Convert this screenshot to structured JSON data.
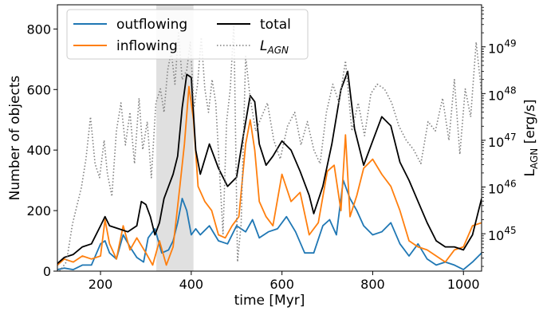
{
  "chart_data": {
    "type": "line",
    "title": "",
    "xlabel": "time [Myr]",
    "ylabel": "Number of objects",
    "y2label": "L_AGN [erg/s]",
    "xlim": [
      105,
      1040
    ],
    "ylim": [
      0,
      880
    ],
    "y2lim_log10": [
      44.2,
      49.9
    ],
    "y2scale": "log",
    "grid": false,
    "legend_position": "top-left",
    "shaded_region_x": [
      323,
      405
    ],
    "x_ticks": [
      200,
      400,
      600,
      800,
      1000
    ],
    "y_ticks": [
      0,
      200,
      400,
      600,
      800
    ],
    "y2_ticks": [
      {
        "value": 45,
        "base": "10",
        "exp": "45"
      },
      {
        "value": 46,
        "base": "10",
        "exp": "46"
      },
      {
        "value": 47,
        "base": "10",
        "exp": "47"
      },
      {
        "value": 48,
        "base": "10",
        "exp": "48"
      },
      {
        "value": 49,
        "base": "10",
        "exp": "49"
      }
    ],
    "series": [
      {
        "name": "outflowing",
        "color": "#1f77b4",
        "axis": "left",
        "x": [
          105,
          120,
          140,
          160,
          180,
          200,
          210,
          220,
          235,
          250,
          265,
          280,
          295,
          305,
          320,
          335,
          350,
          360,
          370,
          380,
          390,
          400,
          410,
          420,
          440,
          460,
          480,
          500,
          520,
          535,
          550,
          570,
          590,
          610,
          630,
          650,
          670,
          690,
          705,
          720,
          735,
          750,
          765,
          780,
          800,
          820,
          840,
          860,
          880,
          900,
          920,
          940,
          960,
          980,
          1000,
          1020,
          1040
        ],
        "y": [
          5,
          10,
          5,
          20,
          20,
          90,
          100,
          60,
          40,
          120,
          80,
          45,
          30,
          110,
          140,
          60,
          70,
          100,
          160,
          240,
          200,
          120,
          140,
          120,
          150,
          100,
          90,
          150,
          130,
          170,
          110,
          130,
          140,
          180,
          130,
          60,
          60,
          150,
          170,
          120,
          300,
          240,
          200,
          150,
          120,
          130,
          160,
          90,
          50,
          90,
          40,
          20,
          30,
          20,
          5,
          30,
          60
        ]
      },
      {
        "name": "inflowing",
        "color": "#ff7f0e",
        "axis": "left",
        "x": [
          105,
          120,
          140,
          160,
          180,
          200,
          210,
          220,
          235,
          250,
          265,
          280,
          300,
          315,
          330,
          345,
          360,
          375,
          385,
          395,
          405,
          415,
          430,
          445,
          460,
          475,
          490,
          505,
          520,
          530,
          540,
          550,
          565,
          580,
          600,
          620,
          640,
          660,
          680,
          700,
          715,
          730,
          740,
          750,
          765,
          780,
          800,
          820,
          840,
          860,
          880,
          900,
          920,
          940,
          960,
          980,
          1000,
          1020,
          1040
        ],
        "y": [
          20,
          40,
          30,
          50,
          40,
          50,
          170,
          90,
          40,
          150,
          70,
          110,
          60,
          20,
          100,
          20,
          80,
          280,
          420,
          610,
          500,
          280,
          230,
          200,
          120,
          110,
          150,
          180,
          420,
          500,
          400,
          230,
          180,
          150,
          320,
          230,
          260,
          120,
          160,
          330,
          350,
          200,
          450,
          180,
          250,
          340,
          370,
          320,
          280,
          200,
          100,
          80,
          70,
          50,
          30,
          70,
          80,
          150,
          160
        ]
      },
      {
        "name": "total",
        "color": "#000000",
        "axis": "left",
        "x": [
          105,
          120,
          140,
          160,
          180,
          200,
          210,
          220,
          240,
          260,
          280,
          290,
          300,
          310,
          320,
          330,
          340,
          350,
          360,
          370,
          380,
          390,
          400,
          410,
          420,
          440,
          460,
          480,
          500,
          515,
          530,
          540,
          550,
          565,
          580,
          600,
          620,
          640,
          660,
          670,
          690,
          710,
          730,
          745,
          760,
          780,
          800,
          820,
          840,
          860,
          880,
          900,
          920,
          940,
          960,
          980,
          1000,
          1020,
          1030,
          1040
        ],
        "y": [
          25,
          45,
          55,
          80,
          90,
          150,
          180,
          150,
          140,
          130,
          150,
          230,
          220,
          180,
          120,
          160,
          240,
          280,
          320,
          380,
          540,
          650,
          640,
          400,
          320,
          420,
          340,
          280,
          310,
          450,
          580,
          560,
          420,
          350,
          380,
          430,
          400,
          330,
          250,
          190,
          280,
          420,
          600,
          660,
          470,
          350,
          430,
          510,
          480,
          360,
          300,
          230,
          160,
          100,
          80,
          80,
          70,
          120,
          180,
          240
        ]
      },
      {
        "name": "L_AGN",
        "color": "#7f7f7f",
        "axis": "right",
        "dotted": true,
        "x": [
          110,
          125,
          138,
          148,
          158,
          168,
          178,
          188,
          198,
          208,
          215,
          225,
          235,
          245,
          255,
          265,
          275,
          285,
          293,
          303,
          312,
          322,
          332,
          340,
          348,
          356,
          364,
          372,
          380,
          390,
          398,
          406,
          414,
          422,
          430,
          438,
          446,
          454,
          462,
          470,
          478,
          486,
          494,
          502,
          510,
          520,
          530,
          542,
          555,
          568,
          582,
          596,
          612,
          628,
          642,
          656,
          670,
          684,
          698,
          712,
          726,
          740,
          754,
          768,
          782,
          796,
          810,
          826,
          842,
          858,
          874,
          890,
          906,
          922,
          938,
          954,
          968,
          980,
          992,
          1004,
          1016,
          1028,
          1040
        ],
        "y": [
          44.2,
          44.4,
          45.2,
          45.6,
          46.0,
          46.6,
          47.5,
          46.5,
          46.2,
          47.0,
          46.3,
          45.8,
          47.2,
          47.8,
          46.9,
          47.6,
          46.5,
          47.9,
          46.8,
          47.4,
          46.2,
          47.8,
          48.1,
          47.6,
          48.5,
          48.9,
          48.2,
          49.3,
          48.3,
          48.5,
          49.1,
          47.7,
          48.2,
          49.2,
          48.1,
          47.6,
          48.3,
          47.8,
          46.4,
          45.0,
          47.4,
          48.1,
          49.5,
          44.4,
          45.2,
          48.8,
          47.9,
          47.2,
          47.5,
          47.8,
          47.0,
          46.6,
          47.3,
          47.6,
          46.9,
          47.4,
          46.8,
          46.5,
          47.6,
          48.2,
          47.8,
          48.7,
          47.2,
          47.8,
          47.1,
          48.0,
          48.2,
          48.1,
          47.8,
          47.3,
          47.0,
          46.8,
          46.5,
          47.4,
          47.2,
          47.9,
          47.0,
          48.3,
          46.7,
          48.1,
          47.5,
          49.1,
          48.0
        ]
      }
    ]
  }
}
